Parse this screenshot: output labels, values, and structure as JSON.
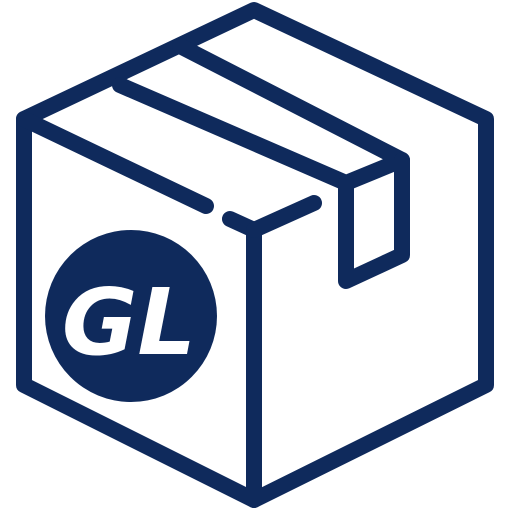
{
  "brand": {
    "badge_text": "GL"
  },
  "icon": {
    "name": "package-box-icon"
  },
  "colors": {
    "stroke": "#0f2a5c",
    "badge_fill": "#0f2a5c",
    "badge_text": "#ffffff",
    "background": "#ffffff"
  }
}
